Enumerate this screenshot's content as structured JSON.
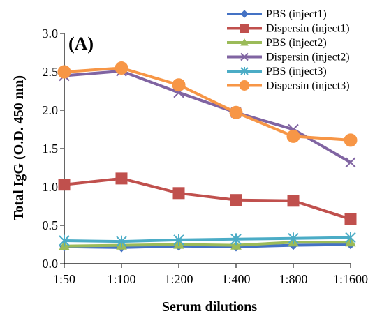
{
  "chart_data": {
    "type": "line",
    "panel_label": "(A)",
    "xlabel": "Serum dilutions",
    "ylabel": "Total IgG (O.D. 450 nm)",
    "categories": [
      "1:50",
      "1:100",
      "1:200",
      "1:400",
      "1:800",
      "1:1600"
    ],
    "ylim": [
      0,
      3
    ],
    "yticks": [
      "0.0",
      "0.5",
      "1.0",
      "1.5",
      "2.0",
      "2.5",
      "3.0"
    ],
    "grid": false,
    "legend_position": "top-right",
    "series": [
      {
        "name": "PBS (inject1)",
        "color": "#4472C4",
        "marker": "diamond",
        "values": [
          0.22,
          0.21,
          0.23,
          0.22,
          0.24,
          0.25
        ]
      },
      {
        "name": "Dispersin (inject1)",
        "color": "#C0504D",
        "marker": "square",
        "values": [
          1.03,
          1.11,
          0.92,
          0.83,
          0.82,
          0.58
        ]
      },
      {
        "name": "PBS (inject2)",
        "color": "#9BBB59",
        "marker": "triangle",
        "values": [
          0.23,
          0.24,
          0.25,
          0.24,
          0.28,
          0.28
        ]
      },
      {
        "name": "Dispersin (inject2)",
        "color": "#8064A2",
        "marker": "x",
        "values": [
          2.45,
          2.51,
          2.23,
          1.97,
          1.75,
          1.32
        ]
      },
      {
        "name": "PBS (inject3)",
        "color": "#4BACC6",
        "marker": "star",
        "values": [
          0.3,
          0.29,
          0.31,
          0.32,
          0.33,
          0.34
        ]
      },
      {
        "name": "Dispersin (inject3)",
        "color": "#F79646",
        "marker": "circle",
        "values": [
          2.5,
          2.55,
          2.33,
          1.97,
          1.66,
          1.61
        ]
      }
    ]
  }
}
